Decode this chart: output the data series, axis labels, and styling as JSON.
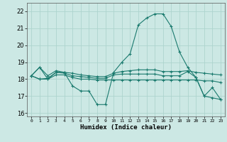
{
  "title": "",
  "xlabel": "Humidex (Indice chaleur)",
  "ylabel": "",
  "bg_color": "#cce8e4",
  "grid_color": "#add4ce",
  "line_color": "#1a7a6e",
  "xlim": [
    -0.5,
    23.5
  ],
  "ylim": [
    15.8,
    22.5
  ],
  "yticks": [
    16,
    17,
    18,
    19,
    20,
    21,
    22
  ],
  "xticks": [
    0,
    1,
    2,
    3,
    4,
    5,
    6,
    7,
    8,
    9,
    10,
    11,
    12,
    13,
    14,
    15,
    16,
    17,
    18,
    19,
    20,
    21,
    22,
    23
  ],
  "series": [
    [
      18.2,
      18.7,
      18.0,
      18.4,
      18.4,
      17.6,
      17.3,
      17.3,
      16.5,
      16.5,
      18.4,
      19.0,
      19.5,
      21.2,
      21.6,
      21.85,
      21.85,
      21.1,
      19.6,
      18.7,
      18.1,
      17.0,
      17.5,
      16.8
    ],
    [
      18.2,
      18.0,
      18.05,
      18.4,
      18.35,
      18.2,
      18.15,
      18.1,
      18.05,
      18.05,
      18.25,
      18.3,
      18.3,
      18.3,
      18.3,
      18.3,
      18.2,
      18.2,
      18.2,
      18.45,
      18.1,
      17.0,
      16.9,
      16.8
    ],
    [
      18.2,
      18.7,
      18.2,
      18.5,
      18.4,
      18.35,
      18.25,
      18.2,
      18.15,
      18.15,
      18.35,
      18.45,
      18.5,
      18.55,
      18.55,
      18.55,
      18.45,
      18.45,
      18.45,
      18.5,
      18.4,
      18.35,
      18.3,
      18.25
    ],
    [
      18.2,
      18.0,
      18.0,
      18.25,
      18.25,
      18.1,
      18.0,
      18.0,
      17.95,
      17.95,
      17.95,
      17.95,
      17.95,
      17.95,
      17.95,
      17.95,
      17.95,
      17.95,
      17.95,
      17.95,
      17.95,
      17.9,
      17.9,
      17.8
    ]
  ]
}
